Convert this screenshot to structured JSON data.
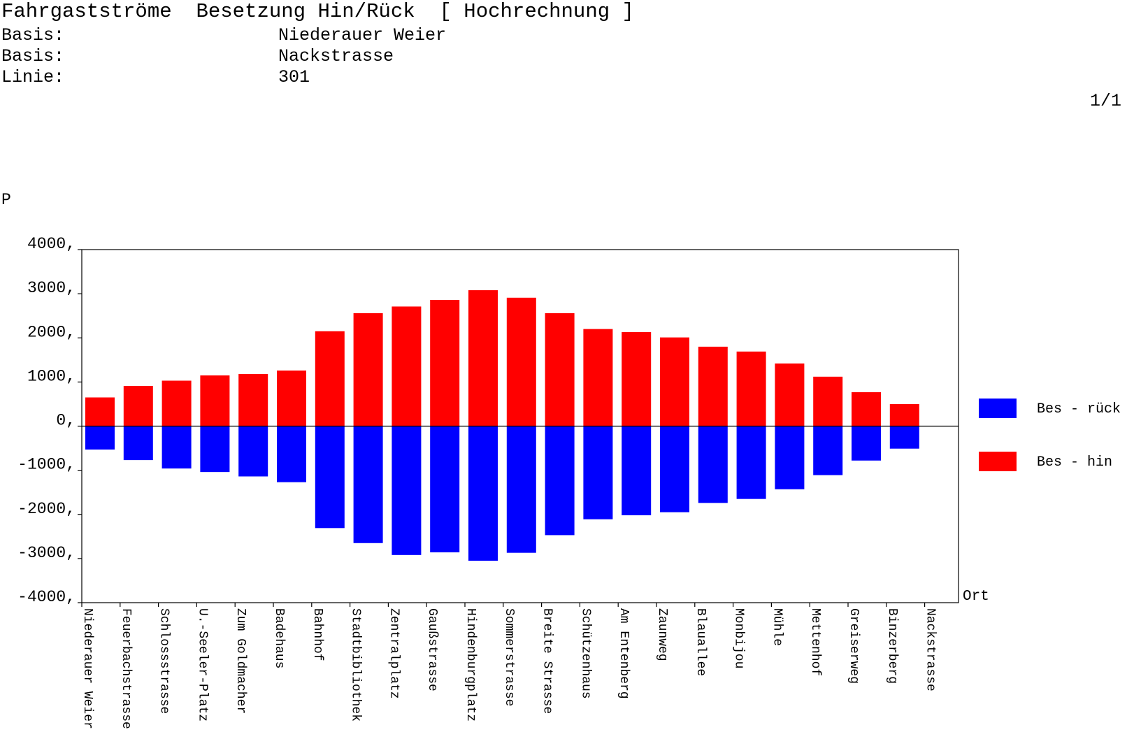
{
  "header": {
    "title": "Fahrgastströme  Besetzung Hin/Rück  [ Hochrechnung ]",
    "rows": [
      {
        "label": "Basis:",
        "value": "Niederauer Weier"
      },
      {
        "label": "Basis:",
        "value": "Nackstrasse"
      },
      {
        "label": "Linie:",
        "value": "301"
      }
    ],
    "page": "1/1"
  },
  "chart_data": {
    "type": "bar",
    "ylabel": "P",
    "xlabel": "Ort",
    "ylim": [
      -4000,
      4000
    ],
    "yticks": [
      4000,
      3000,
      2000,
      1000,
      0,
      -1000,
      -2000,
      -3000,
      -4000
    ],
    "ytick_labels": [
      "4000,",
      "3000,",
      "2000,",
      "1000,",
      "0,",
      "-1000,",
      "-2000,",
      "-3000,",
      "-4000,"
    ],
    "categories": [
      "Niederauer Weier",
      "Feuerbachstrasse",
      "Schlossstrasse",
      "U.-Seeler-Platz",
      "Zum Goldmacher",
      "Badehaus",
      "Bahnhof",
      "Stadtbibliothek",
      "Zentralplatz",
      "Gaußstrasse",
      "Hindenburgplatz",
      "Sommerstrasse",
      "Breite Strasse",
      "Schützenhaus",
      "Am Entenberg",
      "Zaunweg",
      "Blauallee",
      "Monbijou",
      "Mühle",
      "Mettenhof",
      "Greiserweg",
      "Binzerberg",
      "Nackstrasse"
    ],
    "series": [
      {
        "name": "Bes - rück",
        "color": "#0000ff",
        "values": [
          -530,
          -770,
          -960,
          -1040,
          -1140,
          -1270,
          -2310,
          -2650,
          -2920,
          -2860,
          -3050,
          -2870,
          -2470,
          -2110,
          -2020,
          -1950,
          -1740,
          -1650,
          -1430,
          -1110,
          -780,
          -510,
          0
        ]
      },
      {
        "name": "Bes - hin",
        "color": "#ff0000",
        "values": [
          650,
          910,
          1030,
          1150,
          1180,
          1260,
          2150,
          2560,
          2710,
          2860,
          3080,
          2910,
          2560,
          2200,
          2130,
          2010,
          1800,
          1690,
          1420,
          1120,
          770,
          500,
          0
        ]
      }
    ],
    "legend_position": "right",
    "grid": false
  }
}
